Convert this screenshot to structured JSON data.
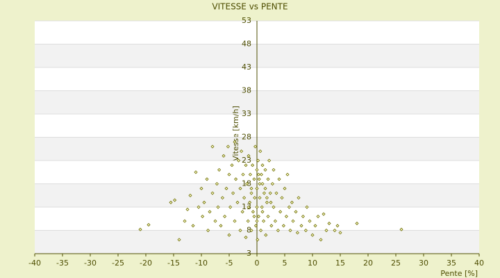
{
  "chart_data": {
    "type": "scatter",
    "title": "VITESSE vs PENTE",
    "x_label": "Pente [%]",
    "y_label": "Vitesse [km/h]",
    "xlim": [
      -40,
      40
    ],
    "xticks": [
      -40,
      -35,
      -30,
      -25,
      -20,
      -15,
      -10,
      -5,
      0,
      5,
      10,
      15,
      20,
      25,
      30,
      35,
      40
    ],
    "ylim": [
      3,
      53
    ],
    "yticks": [
      3,
      8,
      13,
      18,
      23,
      28,
      33,
      38,
      43,
      48,
      53
    ],
    "color": "#6b6b00",
    "grid": true,
    "series": [
      {
        "name": "Vitesse",
        "color": "#6b6b00",
        "x": [
          -21,
          -19.5,
          -15.5,
          -14.8,
          -14,
          -13,
          -12.5,
          -12,
          -11.5,
          -11,
          -10.5,
          -10,
          -9.8,
          -9.5,
          -9,
          -8.8,
          -8.5,
          -8,
          -8,
          -7.5,
          -7.2,
          -7,
          -6.8,
          -6.5,
          -6.2,
          -6,
          -5.8,
          -5.5,
          -5.2,
          -5,
          -5,
          -4.8,
          -4.5,
          -4.3,
          -4,
          -4,
          -3.8,
          -3.5,
          -3.3,
          -3,
          -3,
          -2.8,
          -2.6,
          -2.5,
          -2.3,
          -2,
          -2,
          -1.8,
          -1.6,
          -1.5,
          -1.3,
          -1.2,
          -1,
          -1,
          -0.8,
          -0.7,
          -0.5,
          -0.4,
          -0.3,
          -0.2,
          0,
          0,
          0,
          0.1,
          0.2,
          0.3,
          0.4,
          0.5,
          0.6,
          0.7,
          0.8,
          0.9,
          1,
          1,
          1.2,
          1.3,
          1.5,
          1.6,
          1.8,
          2,
          2,
          2.2,
          2.4,
          2.6,
          2.8,
          3,
          3,
          3.3,
          3.5,
          3.8,
          4,
          4.2,
          4.5,
          4.8,
          5,
          5.3,
          5.5,
          5.8,
          6,
          6.3,
          6.5,
          7,
          7.3,
          7.5,
          8,
          8.3,
          8.8,
          9,
          9.5,
          10,
          10.5,
          11,
          11.5,
          12,
          12.5,
          13,
          14,
          14.5,
          15,
          18,
          26,
          -1,
          0.5,
          1.5,
          -0.5,
          2.5,
          0,
          1,
          -1.5,
          0.3,
          1.8
        ],
        "values": [
          8.2,
          9.2,
          14,
          14.5,
          6,
          10,
          12.5,
          15.5,
          9,
          20.5,
          13,
          17,
          11,
          14,
          19,
          8,
          12,
          26,
          16,
          10,
          18,
          13,
          21,
          9,
          15,
          24,
          11,
          17,
          26,
          20,
          7,
          13,
          22,
          16,
          27,
          10,
          19,
          14,
          23,
          8,
          17,
          25,
          12,
          20,
          15,
          22,
          6.5,
          18,
          10,
          24,
          14,
          20,
          17,
          8,
          22,
          12,
          19,
          15,
          26,
          9,
          21,
          13,
          17,
          6,
          23,
          11,
          19,
          15,
          25,
          8,
          20,
          13,
          18,
          22,
          10,
          16,
          21,
          7,
          14,
          19,
          11,
          23,
          16,
          9,
          18,
          13,
          21,
          10,
          16,
          8,
          19,
          12,
          15,
          9,
          17,
          11,
          20,
          13,
          8,
          14,
          10,
          12,
          7.5,
          15,
          9,
          11,
          8,
          13,
          10,
          7,
          9,
          11,
          6,
          11.5,
          8,
          9.5,
          8,
          9,
          7.5,
          9.5,
          8.2,
          16,
          18,
          17,
          11,
          14,
          10,
          12,
          13,
          20,
          15
        ]
      }
    ]
  }
}
